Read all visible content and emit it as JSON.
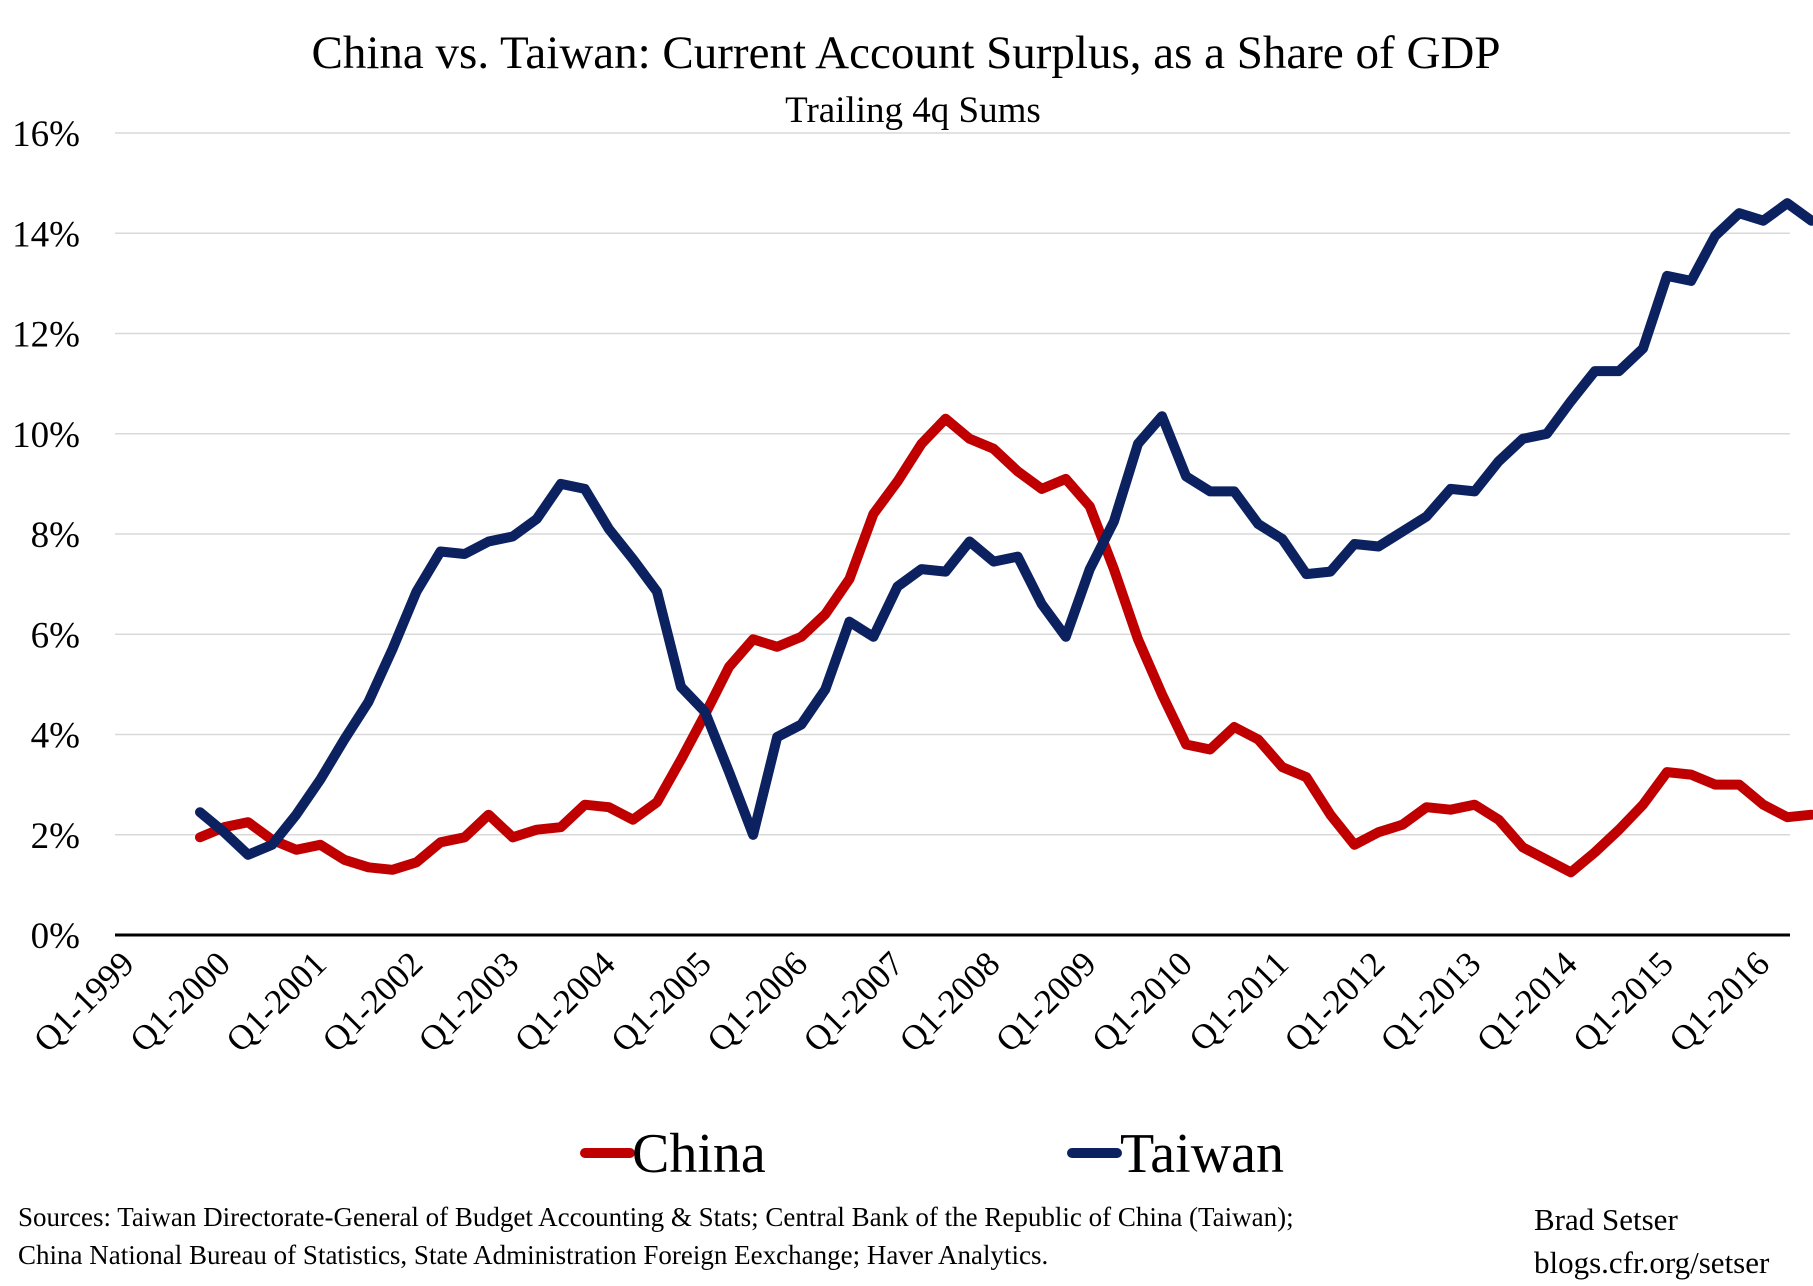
{
  "chart_data": {
    "type": "line",
    "title": "China vs. Taiwan: Current Account Surplus, as a Share of GDP",
    "subtitle": "Trailing 4q Sums",
    "xlabel": "",
    "ylabel": "",
    "ylim": [
      0,
      16
    ],
    "y_ticks": [
      0,
      2,
      4,
      6,
      8,
      10,
      12,
      14,
      16
    ],
    "y_tick_labels": [
      "0%",
      "2%",
      "4%",
      "6%",
      "8%",
      "10%",
      "12%",
      "14%",
      "16%"
    ],
    "x_tick_labels": [
      "Q1-1999",
      "Q1-2000",
      "Q1-2001",
      "Q1-2002",
      "Q1-2003",
      "Q1-2004",
      "Q1-2005",
      "Q1-2006",
      "Q1-2007",
      "Q1-2008",
      "Q1-2009",
      "Q1-2010",
      "Q1-2011",
      "Q1-2012",
      "Q1-2013",
      "Q1-2014",
      "Q1-2015",
      "Q1-2016"
    ],
    "grid": true,
    "legend_position": "bottom",
    "x_first": "Q4-1999",
    "series": [
      {
        "name": "China",
        "color": "#c00000",
        "values": [
          1.95,
          2.15,
          2.25,
          1.9,
          1.7,
          1.8,
          1.5,
          1.35,
          1.3,
          1.45,
          1.85,
          1.95,
          2.4,
          1.95,
          2.1,
          2.15,
          2.6,
          2.55,
          2.3,
          2.65,
          3.5,
          4.4,
          5.35,
          5.9,
          5.75,
          5.95,
          6.4,
          7.1,
          8.4,
          9.05,
          9.8,
          10.3,
          9.9,
          9.7,
          9.25,
          8.9,
          9.1,
          8.55,
          7.3,
          5.9,
          4.8,
          3.8,
          3.7,
          4.15,
          3.9,
          3.35,
          3.15,
          2.4,
          1.8,
          2.05,
          2.2,
          2.55,
          2.5,
          2.6,
          2.3,
          1.75,
          1.5,
          1.25,
          1.65,
          2.1,
          2.6,
          3.25,
          3.2,
          3.0,
          3.0,
          2.6,
          2.35,
          2.4
        ]
      },
      {
        "name": "Taiwan",
        "color": "#0b2160",
        "values": [
          2.45,
          2.05,
          1.6,
          1.8,
          2.4,
          3.1,
          3.9,
          4.65,
          5.7,
          6.85,
          7.65,
          7.6,
          7.85,
          7.95,
          8.3,
          9.0,
          8.9,
          8.1,
          7.5,
          6.85,
          4.95,
          4.45,
          3.25,
          2.0,
          3.95,
          4.2,
          4.9,
          6.25,
          5.95,
          6.95,
          7.3,
          7.25,
          7.85,
          7.45,
          7.55,
          6.6,
          5.95,
          7.3,
          8.25,
          9.8,
          10.35,
          9.15,
          8.85,
          8.85,
          8.2,
          7.9,
          7.2,
          7.25,
          7.8,
          7.75,
          8.05,
          8.35,
          8.9,
          8.85,
          9.45,
          9.9,
          10.0,
          10.65,
          11.25,
          11.25,
          11.7,
          13.15,
          13.05,
          13.95,
          14.4,
          14.25,
          14.6,
          14.25
        ]
      }
    ]
  },
  "footer": {
    "sources_line1": "Sources: Taiwan Directorate-General  of Budget Accounting & Stats; Central Bank of the Republic of China (Taiwan);",
    "sources_line2": " China National Bureau of Statistics, State Administration Foreign Eexchange; Haver Analytics.",
    "author": "Brad Setser",
    "url": "blogs.cfr.org/setser"
  }
}
